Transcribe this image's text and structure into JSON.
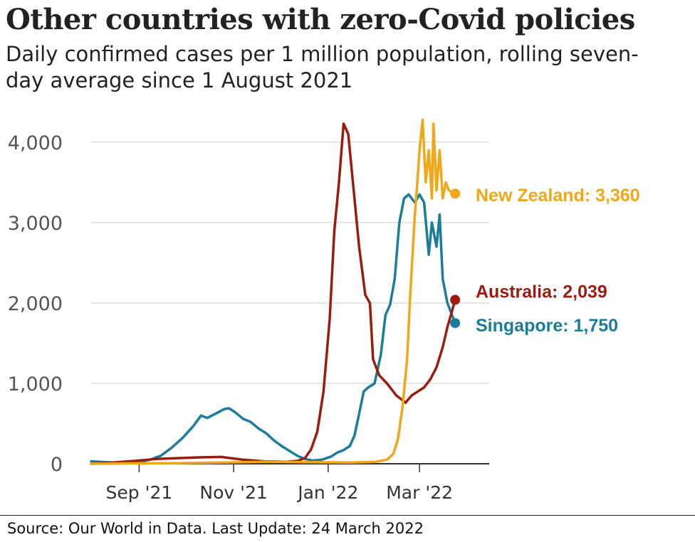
{
  "header": {
    "title": "Other countries with zero-Covid policies",
    "subtitle": "Daily confirmed cases per 1 million population, rolling seven-day average since 1 August 2021"
  },
  "footer": {
    "source": "Source: Our World in Data. Last Update: 24 March 2022"
  },
  "chart_data": {
    "type": "line",
    "title": "Other countries with zero-Covid policies",
    "subtitle": "Daily confirmed cases per 1 million population, rolling seven-day average since 1 August 2021",
    "xlabel": "",
    "ylabel": "",
    "x_ticks": [
      {
        "date": "2021-09-01",
        "label": "Sep '21"
      },
      {
        "date": "2021-11-01",
        "label": "Nov '21"
      },
      {
        "date": "2022-01-01",
        "label": "Jan '22"
      },
      {
        "date": "2022-03-01",
        "label": "Mar '22"
      }
    ],
    "xlim": [
      "2021-08-01",
      "2022-04-15"
    ],
    "y_ticks": [
      0,
      1000,
      2000,
      3000,
      4000
    ],
    "y_tick_labels": [
      "0",
      "1,000",
      "2,000",
      "3,000",
      "4,000"
    ],
    "ylim": [
      0,
      4300
    ],
    "grid": "horizontal",
    "legend": "direct labels at line ends",
    "series": [
      {
        "name": "Singapore",
        "color": "#1c7c9c",
        "end_label": "Singapore: 1,750",
        "points": [
          [
            "2021-08-01",
            30
          ],
          [
            "2021-08-15",
            15
          ],
          [
            "2021-08-29",
            10
          ],
          [
            "2021-09-08",
            50
          ],
          [
            "2021-09-15",
            100
          ],
          [
            "2021-09-22",
            200
          ],
          [
            "2021-09-29",
            320
          ],
          [
            "2021-10-06",
            470
          ],
          [
            "2021-10-11",
            600
          ],
          [
            "2021-10-15",
            570
          ],
          [
            "2021-10-20",
            620
          ],
          [
            "2021-10-26",
            680
          ],
          [
            "2021-10-29",
            690
          ],
          [
            "2021-11-02",
            640
          ],
          [
            "2021-11-07",
            560
          ],
          [
            "2021-11-12",
            520
          ],
          [
            "2021-11-17",
            440
          ],
          [
            "2021-11-22",
            380
          ],
          [
            "2021-11-27",
            290
          ],
          [
            "2021-12-02",
            220
          ],
          [
            "2021-12-07",
            160
          ],
          [
            "2021-12-12",
            100
          ],
          [
            "2021-12-17",
            60
          ],
          [
            "2021-12-22",
            40
          ],
          [
            "2021-12-28",
            50
          ],
          [
            "2022-01-03",
            90
          ],
          [
            "2022-01-07",
            140
          ],
          [
            "2022-01-11",
            170
          ],
          [
            "2022-01-15",
            220
          ],
          [
            "2022-01-18",
            350
          ],
          [
            "2022-01-21",
            620
          ],
          [
            "2022-01-24",
            900
          ],
          [
            "2022-01-27",
            950
          ],
          [
            "2022-01-31",
            1000
          ],
          [
            "2022-02-04",
            1350
          ],
          [
            "2022-02-07",
            1850
          ],
          [
            "2022-02-10",
            1980
          ],
          [
            "2022-02-13",
            2300
          ],
          [
            "2022-02-16",
            3000
          ],
          [
            "2022-02-19",
            3300
          ],
          [
            "2022-02-22",
            3350
          ],
          [
            "2022-02-26",
            3250
          ],
          [
            "2022-03-01",
            3350
          ],
          [
            "2022-03-04",
            3250
          ],
          [
            "2022-03-07",
            2600
          ],
          [
            "2022-03-09",
            3000
          ],
          [
            "2022-03-12",
            2700
          ],
          [
            "2022-03-14",
            3100
          ],
          [
            "2022-03-16",
            2300
          ],
          [
            "2022-03-19",
            2000
          ],
          [
            "2022-03-22",
            1850
          ],
          [
            "2022-03-24",
            1750
          ]
        ]
      },
      {
        "name": "Australia",
        "color": "#9b1c0f",
        "end_label": "Australia: 2,039",
        "points": [
          [
            "2021-08-01",
            0
          ],
          [
            "2021-08-15",
            15
          ],
          [
            "2021-08-29",
            35
          ],
          [
            "2021-09-12",
            60
          ],
          [
            "2021-09-26",
            70
          ],
          [
            "2021-10-10",
            80
          ],
          [
            "2021-10-24",
            85
          ],
          [
            "2021-11-07",
            50
          ],
          [
            "2021-11-21",
            30
          ],
          [
            "2021-12-05",
            25
          ],
          [
            "2021-12-12",
            35
          ],
          [
            "2021-12-17",
            70
          ],
          [
            "2021-12-21",
            180
          ],
          [
            "2021-12-25",
            400
          ],
          [
            "2021-12-29",
            900
          ],
          [
            "2022-01-02",
            1800
          ],
          [
            "2022-01-05",
            2900
          ],
          [
            "2022-01-08",
            3500
          ],
          [
            "2022-01-11",
            4230
          ],
          [
            "2022-01-14",
            4100
          ],
          [
            "2022-01-17",
            3500
          ],
          [
            "2022-01-21",
            2700
          ],
          [
            "2022-01-25",
            2100
          ],
          [
            "2022-01-28",
            2000
          ],
          [
            "2022-01-30",
            1300
          ],
          [
            "2022-02-03",
            1100
          ],
          [
            "2022-02-08",
            1000
          ],
          [
            "2022-02-14",
            850
          ],
          [
            "2022-02-20",
            760
          ],
          [
            "2022-02-24",
            850
          ],
          [
            "2022-02-28",
            900
          ],
          [
            "2022-03-04",
            950
          ],
          [
            "2022-03-08",
            1050
          ],
          [
            "2022-03-12",
            1200
          ],
          [
            "2022-03-16",
            1450
          ],
          [
            "2022-03-19",
            1700
          ],
          [
            "2022-03-22",
            1900
          ],
          [
            "2022-03-24",
            2039
          ]
        ]
      },
      {
        "name": "New Zealand",
        "color": "#f0a819",
        "end_label": "New Zealand: 3,360",
        "points": [
          [
            "2021-08-01",
            0
          ],
          [
            "2021-08-29",
            5
          ],
          [
            "2021-09-26",
            8
          ],
          [
            "2021-10-24",
            15
          ],
          [
            "2021-11-21",
            25
          ],
          [
            "2021-12-19",
            20
          ],
          [
            "2022-01-16",
            15
          ],
          [
            "2022-02-01",
            25
          ],
          [
            "2022-02-08",
            50
          ],
          [
            "2022-02-12",
            120
          ],
          [
            "2022-02-15",
            300
          ],
          [
            "2022-02-18",
            700
          ],
          [
            "2022-02-21",
            1300
          ],
          [
            "2022-02-23",
            2100
          ],
          [
            "2022-02-26",
            3100
          ],
          [
            "2022-02-28",
            3600
          ],
          [
            "2022-03-01",
            3900
          ],
          [
            "2022-03-03",
            4280
          ],
          [
            "2022-03-05",
            3500
          ],
          [
            "2022-03-07",
            3900
          ],
          [
            "2022-03-09",
            3300
          ],
          [
            "2022-03-10",
            4230
          ],
          [
            "2022-03-12",
            3400
          ],
          [
            "2022-03-14",
            3900
          ],
          [
            "2022-03-16",
            3300
          ],
          [
            "2022-03-18",
            3500
          ],
          [
            "2022-03-20",
            3400
          ],
          [
            "2022-03-22",
            3380
          ],
          [
            "2022-03-24",
            3360
          ]
        ]
      }
    ]
  }
}
